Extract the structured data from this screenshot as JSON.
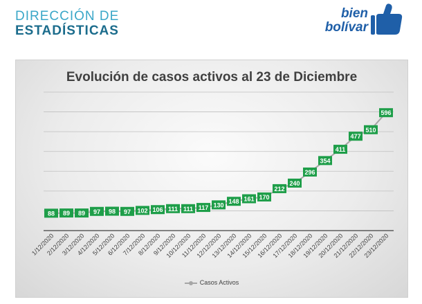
{
  "header": {
    "line1": "DIRECCIÓN DE",
    "line2": "ESTADÍSTICAS"
  },
  "logo": {
    "line1": "bien",
    "line2": "bolívar",
    "color": "#1f5fa8"
  },
  "colors": {
    "label_fill": "#1e9e49",
    "label_text": "#ffffff",
    "line": "#a6a6a6",
    "header_light": "#3aa7c8",
    "header_dark": "#1b6c8c"
  },
  "chart_data": {
    "type": "line",
    "title": "Evolución de casos activos al 23 de Diciembre",
    "categories": [
      "1/12/2020",
      "2/12/2020",
      "3/12/2020",
      "4/12/2020",
      "5/12/2020",
      "6/12/2020",
      "7/12/2020",
      "8/12/2020",
      "9/12/2020",
      "10/12/2020",
      "11/12/2020",
      "12/12/2020",
      "13/12/2020",
      "14/12/2020",
      "15/12/2020",
      "16/12/2020",
      "17/12/2020",
      "18/12/2020",
      "19/12/2020",
      "20/12/2020",
      "21/12/2020",
      "22/12/2020",
      "23/12/2020"
    ],
    "series": [
      {
        "name": "Casos Activos",
        "values": [
          88,
          89,
          89,
          97,
          98,
          97,
          102,
          106,
          111,
          111,
          117,
          130,
          148,
          161,
          170,
          212,
          240,
          296,
          354,
          411,
          477,
          510,
          596
        ]
      }
    ],
    "ylim": [
      0,
      700
    ],
    "grid": true,
    "legend_position": "bottom",
    "data_labels": true
  }
}
